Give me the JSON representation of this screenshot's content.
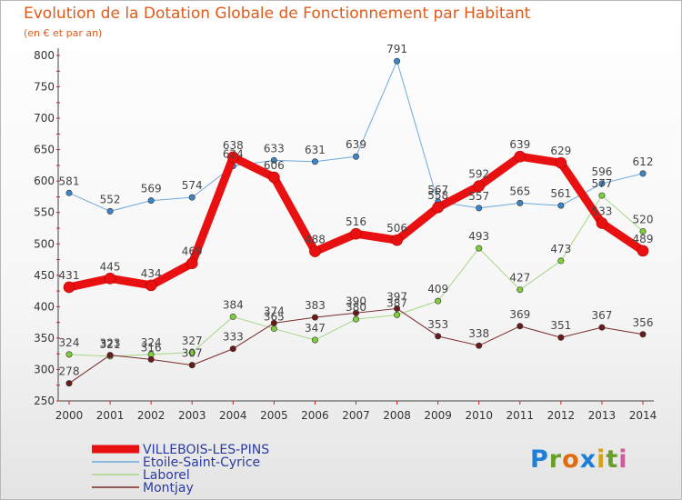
{
  "chart_data": {
    "type": "line",
    "title": "Evolution de la Dotation Globale de Fonctionnement par Habitant",
    "subtitle": "(en € et par an)",
    "xlabel": "",
    "ylabel": "",
    "x": [
      "2000",
      "2001",
      "2002",
      "2003",
      "2004",
      "2005",
      "2006",
      "2007",
      "2008",
      "2009",
      "2010",
      "2011",
      "2012",
      "2013",
      "2014"
    ],
    "ylim": [
      250,
      800
    ],
    "yticks": [
      250,
      300,
      350,
      400,
      450,
      500,
      550,
      600,
      650,
      700,
      750,
      800
    ],
    "grid": false,
    "legend_position": "bottom-left",
    "series": [
      {
        "name": "VILLEBOIS-LES-PINS",
        "color": "#e81010",
        "marker": "#e81010",
        "width": 9,
        "values": [
          431,
          445,
          434,
          469,
          638,
          606,
          488,
          516,
          506,
          558,
          592,
          639,
          629,
          533,
          489
        ]
      },
      {
        "name": "Etoile-Saint-Cyrice",
        "color": "#6fa8dc",
        "marker": "#3c86c8",
        "width": 1,
        "values": [
          581,
          552,
          569,
          574,
          624,
          633,
          631,
          639,
          791,
          567,
          557,
          565,
          561,
          596,
          612
        ]
      },
      {
        "name": "Laborel",
        "color": "#a6d785",
        "marker": "#7fcf3a",
        "width": 1,
        "values": [
          324,
          321,
          324,
          327,
          384,
          365,
          347,
          380,
          387,
          409,
          493,
          427,
          473,
          577,
          520
        ]
      },
      {
        "name": "Montjay",
        "color": "#7a2a2a",
        "marker": "#6b1a1a",
        "width": 1,
        "values": [
          278,
          323,
          316,
          307,
          333,
          374,
          383,
          390,
          397,
          353,
          338,
          369,
          351,
          367,
          356
        ]
      }
    ]
  },
  "brand": {
    "text": "Proxiti"
  }
}
